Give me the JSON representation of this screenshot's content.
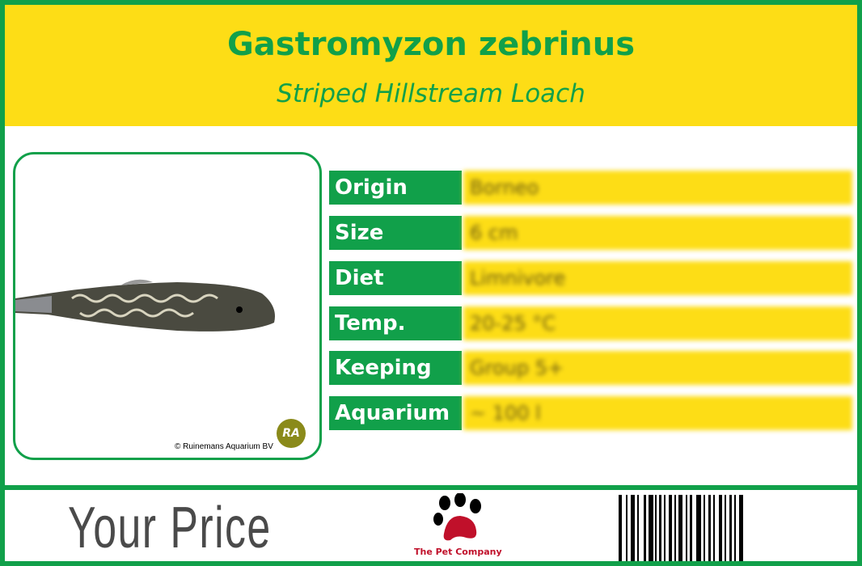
{
  "header": {
    "title": "Gastromyzon zebrinus",
    "subtitle": "Striped Hillstream Loach"
  },
  "photo": {
    "credit": "© Ruinemans Aquarium BV",
    "logo": "RA"
  },
  "facts": [
    {
      "label": "Origin",
      "value": "Borneo"
    },
    {
      "label": "Size",
      "value": "6 cm"
    },
    {
      "label": "Diet",
      "value": "Limnivore"
    },
    {
      "label": "Temp.",
      "value": "20-25 °C"
    },
    {
      "label": "Keeping",
      "value": "Group 5+"
    },
    {
      "label": "Aquarium",
      "value": "~ 100 l"
    }
  ],
  "footer": {
    "price_label": "Your Price",
    "company": "The Pet Company",
    "icons": [
      "paw-icon",
      "barcode"
    ]
  },
  "colors": {
    "green": "#11a04a",
    "yellow": "#fddd16"
  }
}
